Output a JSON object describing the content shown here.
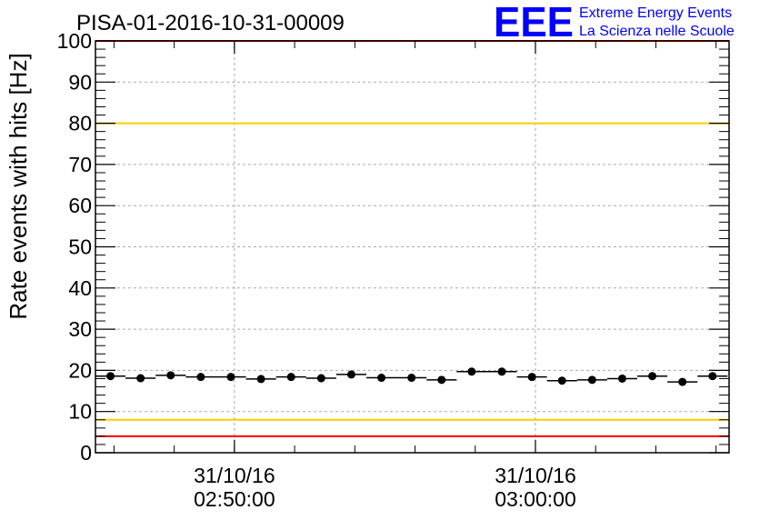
{
  "title": "PISA-01-2016-10-31-00009",
  "logo": {
    "mark": "EEE",
    "line1": "Extreme Energy Events",
    "line2": "La Scienza nelle Scuole",
    "color": "#0000ff"
  },
  "chart_data": {
    "type": "scatter",
    "title": "PISA-01-2016-10-31-00009",
    "xlabel": "",
    "ylabel": "Rate events with hits [Hz]",
    "ylim": [
      0,
      100
    ],
    "yticks": [
      0,
      10,
      20,
      30,
      40,
      50,
      60,
      70,
      80,
      90,
      100
    ],
    "xlim": [
      "2016-10-31 02:45:23",
      "2016-10-31 03:06:26"
    ],
    "xticks": [
      {
        "date": "31/10/16",
        "time": "02:50:00",
        "value": "2016-10-31 02:50:00"
      },
      {
        "date": "31/10/16",
        "time": "03:00:00",
        "value": "2016-10-31 03:00:00"
      }
    ],
    "grid": true,
    "series": [
      {
        "marker": "circle",
        "color": "#000000",
        "bin_width_minutes": 1,
        "x": [
          "02:45:53",
          "02:46:53",
          "02:47:53",
          "02:48:53",
          "02:49:53",
          "02:50:53",
          "02:51:53",
          "02:52:53",
          "02:53:53",
          "02:54:53",
          "02:55:53",
          "02:56:53",
          "02:57:53",
          "02:58:53",
          "02:59:53",
          "03:00:53",
          "03:01:53",
          "03:02:53",
          "03:03:53",
          "03:04:53",
          "03:05:53"
        ],
        "values": [
          18.6,
          18.1,
          18.8,
          18.4,
          18.4,
          17.9,
          18.4,
          18.1,
          19.0,
          18.2,
          18.2,
          17.7,
          19.7,
          19.7,
          18.4,
          17.5,
          17.7,
          18.0,
          18.6,
          17.2,
          18.6
        ]
      }
    ],
    "reference_lines": [
      {
        "value": 100,
        "color": "#ff0000"
      },
      {
        "value": 80,
        "color": "#ffcc00"
      },
      {
        "value": 8,
        "color": "#ffcc00"
      },
      {
        "value": 4,
        "color": "#ff0000"
      }
    ]
  }
}
